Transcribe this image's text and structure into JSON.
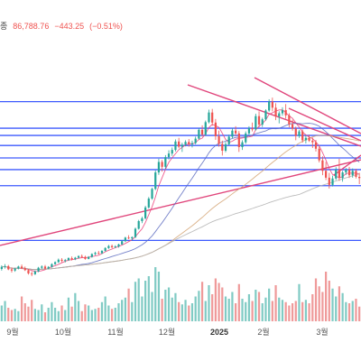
{
  "header": {
    "label": "종",
    "price": "86,788.76",
    "change": "−443.25",
    "change_pct": "(−0.51%)"
  },
  "colors": {
    "up": "#26a69a",
    "down": "#ef5350",
    "hline": "#3d5afe",
    "trend": "#e0457b",
    "ma_fast": "#ec407a",
    "ma_mid": "#5c6bc0",
    "ma_slow": "#d4a373",
    "ma_long": "#b0b0b0"
  },
  "chart_data": {
    "type": "candlestick",
    "title": "",
    "xlabel": "",
    "ylabel": "",
    "x_labels": [
      "9월",
      "10월",
      "11월",
      "12월",
      "2025",
      "2월",
      "3월"
    ],
    "horizontal_lines_price": [
      105800,
      99200,
      97400,
      94900,
      91800,
      88900,
      84900,
      71300
    ],
    "ylim": [
      66000,
      112000
    ],
    "series": [
      {
        "type": "ohlc",
        "values": [
          [
            64200,
            65100,
            63800,
            64700
          ],
          [
            64700,
            65400,
            64300,
            64900
          ],
          [
            64900,
            65200,
            63900,
            64100
          ],
          [
            64100,
            64600,
            63300,
            63800
          ],
          [
            63800,
            64500,
            63500,
            64300
          ],
          [
            64300,
            65000,
            64100,
            64800
          ],
          [
            64800,
            65300,
            64200,
            64400
          ],
          [
            64400,
            64800,
            63700,
            63900
          ],
          [
            63900,
            64200,
            62800,
            63100
          ],
          [
            63100,
            63600,
            62400,
            62900
          ],
          [
            62900,
            63800,
            62700,
            63600
          ],
          [
            63600,
            64700,
            63400,
            64500
          ],
          [
            64500,
            65100,
            64200,
            64800
          ],
          [
            64800,
            65200,
            64000,
            64300
          ],
          [
            64300,
            64900,
            64100,
            64700
          ],
          [
            64700,
            65600,
            64500,
            65400
          ],
          [
            65400,
            66100,
            65200,
            65900
          ],
          [
            65900,
            66800,
            65700,
            66500
          ],
          [
            66500,
            66900,
            65900,
            66200
          ],
          [
            66200,
            66700,
            65800,
            66400
          ],
          [
            66400,
            67100,
            66200,
            66900
          ],
          [
            66900,
            67300,
            66300,
            66600
          ],
          [
            66600,
            67200,
            66400,
            67000
          ],
          [
            67000,
            67600,
            66800,
            67400
          ],
          [
            67400,
            67800,
            66900,
            67200
          ],
          [
            67200,
            67500,
            66500,
            66700
          ],
          [
            66700,
            67400,
            66600,
            67200
          ],
          [
            67200,
            68100,
            67000,
            67900
          ],
          [
            67900,
            68500,
            67600,
            68200
          ],
          [
            68200,
            68700,
            67800,
            68100
          ],
          [
            68100,
            68900,
            67900,
            68700
          ],
          [
            68700,
            69600,
            68500,
            69400
          ],
          [
            69400,
            70200,
            69200,
            69900
          ],
          [
            69900,
            70300,
            69300,
            69600
          ],
          [
            69600,
            70100,
            69400,
            69800
          ],
          [
            69800,
            70500,
            69500,
            70300
          ],
          [
            70300,
            71300,
            70200,
            71100
          ],
          [
            71100,
            72200,
            70900,
            72000
          ],
          [
            72000,
            72600,
            71600,
            71800
          ],
          [
            71800,
            72300,
            71300,
            72100
          ],
          [
            72100,
            74500,
            71900,
            74200
          ],
          [
            74200,
            76400,
            74000,
            76100
          ],
          [
            76100,
            77200,
            75600,
            76800
          ],
          [
            76800,
            79900,
            76500,
            79500
          ],
          [
            79500,
            82100,
            79200,
            81700
          ],
          [
            81700,
            84400,
            81400,
            84100
          ],
          [
            84100,
            88700,
            83800,
            88200
          ],
          [
            88200,
            91600,
            87600,
            90800
          ],
          [
            90800,
            91300,
            88400,
            89600
          ],
          [
            89600,
            92500,
            89100,
            92000
          ],
          [
            92000,
            93700,
            91400,
            92900
          ],
          [
            92900,
            94400,
            92300,
            93800
          ],
          [
            93800,
            96400,
            93400,
            95900
          ],
          [
            95900,
            96800,
            94200,
            94600
          ],
          [
            94600,
            95600,
            93300,
            95100
          ],
          [
            95100,
            96200,
            94700,
            95800
          ],
          [
            95800,
            96500,
            94600,
            95200
          ],
          [
            95200,
            96100,
            94400,
            95500
          ],
          [
            95500,
            97100,
            95200,
            96600
          ],
          [
            96600,
            99200,
            96400,
            98800
          ],
          [
            98800,
            99900,
            97100,
            97600
          ],
          [
            97600,
            101100,
            97300,
            100700
          ],
          [
            100700,
            103800,
            100400,
            103100
          ],
          [
            103100,
            104000,
            99800,
            100600
          ],
          [
            100600,
            101500,
            96300,
            97200
          ],
          [
            97200,
            98600,
            94600,
            95300
          ],
          [
            95300,
            96100,
            92400,
            93600
          ],
          [
            93600,
            95800,
            93200,
            95200
          ],
          [
            95200,
            97600,
            94900,
            97100
          ],
          [
            97100,
            99200,
            96700,
            98600
          ],
          [
            98600,
            99700,
            97300,
            97900
          ],
          [
            97900,
            98500,
            93300,
            94500
          ],
          [
            94500,
            96200,
            93800,
            95700
          ],
          [
            95700,
            98400,
            95300,
            97900
          ],
          [
            97900,
            99700,
            97500,
            99200
          ],
          [
            99200,
            100600,
            98400,
            98900
          ],
          [
            98900,
            102800,
            98600,
            102200
          ],
          [
            102200,
            103400,
            99400,
            100100
          ],
          [
            100100,
            101800,
            99500,
            101400
          ],
          [
            101400,
            103900,
            101100,
            103600
          ],
          [
            103600,
            106400,
            103300,
            105800
          ],
          [
            105800,
            106800,
            103400,
            104300
          ],
          [
            104300,
            105400,
            101200,
            102100
          ],
          [
            102100,
            103400,
            100400,
            102900
          ],
          [
            102900,
            104400,
            102300,
            103700
          ],
          [
            103700,
            105200,
            101600,
            102400
          ],
          [
            102400,
            102900,
            99400,
            100200
          ],
          [
            100200,
            101300,
            98600,
            99100
          ],
          [
            99100,
            99600,
            96200,
            97300
          ],
          [
            97300,
            98800,
            96800,
            98400
          ],
          [
            98400,
            98900,
            95600,
            96200
          ],
          [
            96200,
            97400,
            95400,
            96800
          ],
          [
            96800,
            97600,
            95800,
            96100
          ],
          [
            96100,
            96900,
            94300,
            95700
          ],
          [
            95700,
            96300,
            93400,
            94100
          ],
          [
            94100,
            94800,
            90700,
            91200
          ],
          [
            91200,
            92200,
            87500,
            88600
          ],
          [
            88600,
            90800,
            86300,
            86900
          ],
          [
            86900,
            88100,
            84200,
            85100
          ],
          [
            85100,
            87400,
            84700,
            86700
          ],
          [
            86700,
            89500,
            86300,
            88900
          ],
          [
            88900,
            91600,
            86100,
            86800
          ],
          [
            86800,
            88600,
            85900,
            88200
          ],
          [
            88200,
            89300,
            87600,
            88900
          ],
          [
            88900,
            89600,
            86800,
            87500
          ],
          [
            87500,
            89200,
            86900,
            88600
          ],
          [
            88600,
            89100,
            86700,
            87100
          ],
          [
            87100,
            88100,
            85300,
            86788
          ]
        ]
      },
      {
        "name": "",
        "type": "volume",
        "values": [
          14,
          18,
          12,
          10,
          11,
          9,
          22,
          16,
          13,
          19,
          11,
          10,
          15,
          8,
          12,
          17,
          12,
          9,
          14,
          10,
          21,
          13,
          25,
          18,
          9,
          15,
          14,
          10,
          11,
          12,
          17,
          22,
          14,
          11,
          12,
          16,
          19,
          21,
          29,
          17,
          35,
          38,
          22,
          36,
          40,
          26,
          48,
          44,
          20,
          28,
          30,
          21,
          25,
          17,
          15,
          19,
          14,
          16,
          22,
          27,
          35,
          18,
          32,
          24,
          38,
          34,
          30,
          22,
          20,
          26,
          16,
          33,
          20,
          17,
          24,
          18,
          28,
          26,
          16,
          21,
          29,
          18,
          32,
          21,
          19,
          17,
          14,
          16,
          18,
          33,
          17,
          19,
          16,
          24,
          38,
          31,
          26,
          44,
          36,
          29,
          22,
          31,
          25,
          17,
          16,
          18,
          20,
          13
        ]
      }
    ]
  }
}
